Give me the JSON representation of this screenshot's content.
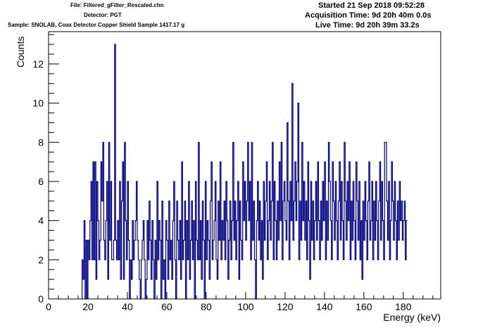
{
  "header": {
    "file": "File: Filtered_gFilter_Rescaled.chn",
    "detector": "Detector: PGT",
    "sample": "Sample: SNOLAB, Coax Detector Copper Shield Sample 1417.17 g",
    "started": "Started 21 Sep 2018 09:52:28",
    "acquisition_time": "Acquisition Time: 9d 20h 40m 0.0s",
    "live_time": "Live Time: 9d 20h 39m 33.2s"
  },
  "colors": {
    "series": "#000080",
    "axis": "#000000",
    "background": "#ffffff"
  },
  "chart_data": {
    "type": "line",
    "style": "histogram-step",
    "xlabel": "Energy (keV)",
    "ylabel": "Counts",
    "xlim": [
      0,
      199
    ],
    "ylim": [
      0,
      13.65
    ],
    "grid": false,
    "legend": "none",
    "xticks": [
      0,
      20,
      40,
      60,
      80,
      100,
      120,
      140,
      160,
      180
    ],
    "yticks": [
      0,
      2,
      4,
      6,
      8,
      10,
      12
    ],
    "bin_width": 0.5,
    "x_start": 17,
    "values": [
      2,
      1,
      4,
      0,
      3,
      0,
      3,
      2,
      4,
      6,
      2,
      7,
      2,
      7,
      1,
      6,
      4,
      2,
      3,
      7,
      5,
      8,
      3,
      2,
      4,
      6,
      1,
      8,
      3,
      6,
      2,
      2,
      3,
      13,
      3,
      2,
      4,
      2,
      6,
      1,
      5,
      7,
      1,
      8,
      4,
      2,
      6,
      3,
      0,
      2,
      1,
      4,
      2,
      3,
      4,
      6,
      3,
      2,
      1,
      0,
      2,
      3,
      4,
      2,
      0,
      1,
      4,
      2,
      5,
      3,
      1,
      4,
      2,
      0,
      3,
      1,
      6,
      2,
      4,
      3,
      0,
      5,
      1,
      2,
      0,
      4,
      3,
      1,
      5,
      2,
      3,
      1,
      4,
      6,
      2,
      0,
      5,
      3,
      2,
      4,
      1,
      7,
      2,
      3,
      5,
      0,
      4,
      2,
      6,
      1,
      3,
      5,
      2,
      4,
      0,
      6,
      3,
      2,
      8,
      2,
      4,
      1,
      5,
      3,
      0,
      6,
      2,
      4,
      3,
      1,
      5,
      7,
      2,
      3,
      4,
      6,
      2,
      1,
      5,
      3,
      7,
      2,
      4,
      3,
      5,
      2,
      6,
      4,
      1,
      3,
      5,
      2,
      4,
      8,
      3,
      5,
      2,
      4,
      6,
      1,
      5,
      3,
      2,
      7,
      4,
      6,
      3,
      5,
      8,
      4,
      6,
      2,
      8,
      3,
      5,
      2,
      0,
      4,
      6,
      3,
      5,
      2,
      4,
      1,
      6,
      3,
      5,
      7,
      2,
      4,
      6,
      3,
      5,
      8,
      2,
      6,
      4,
      2,
      5,
      3,
      7,
      4,
      8,
      2,
      5,
      6,
      4,
      3,
      9,
      5,
      2,
      6,
      4,
      11,
      3,
      5,
      7,
      4,
      6,
      10,
      2,
      5,
      3,
      8,
      4,
      6,
      3,
      5,
      2,
      7,
      4,
      1,
      6,
      3,
      5,
      2,
      4,
      6,
      3,
      7,
      4,
      2,
      5,
      3,
      6,
      4,
      7,
      2,
      5,
      3,
      8,
      6,
      4,
      2,
      7,
      5,
      3,
      6,
      4,
      2,
      5,
      7,
      3,
      6,
      4,
      2,
      8,
      5,
      3,
      6,
      4,
      7,
      2,
      5,
      3,
      6,
      4,
      2,
      7,
      5,
      3,
      6,
      2,
      4,
      1,
      5,
      3,
      6,
      4,
      2,
      5,
      7,
      3,
      4,
      6,
      2,
      5,
      3,
      6,
      4,
      2,
      5,
      7,
      3,
      6,
      4,
      2,
      8,
      8,
      5,
      3,
      6,
      2,
      4,
      7,
      5,
      3,
      6,
      4,
      2,
      5,
      3,
      6,
      4,
      5,
      3,
      4,
      5,
      2,
      4
    ]
  }
}
